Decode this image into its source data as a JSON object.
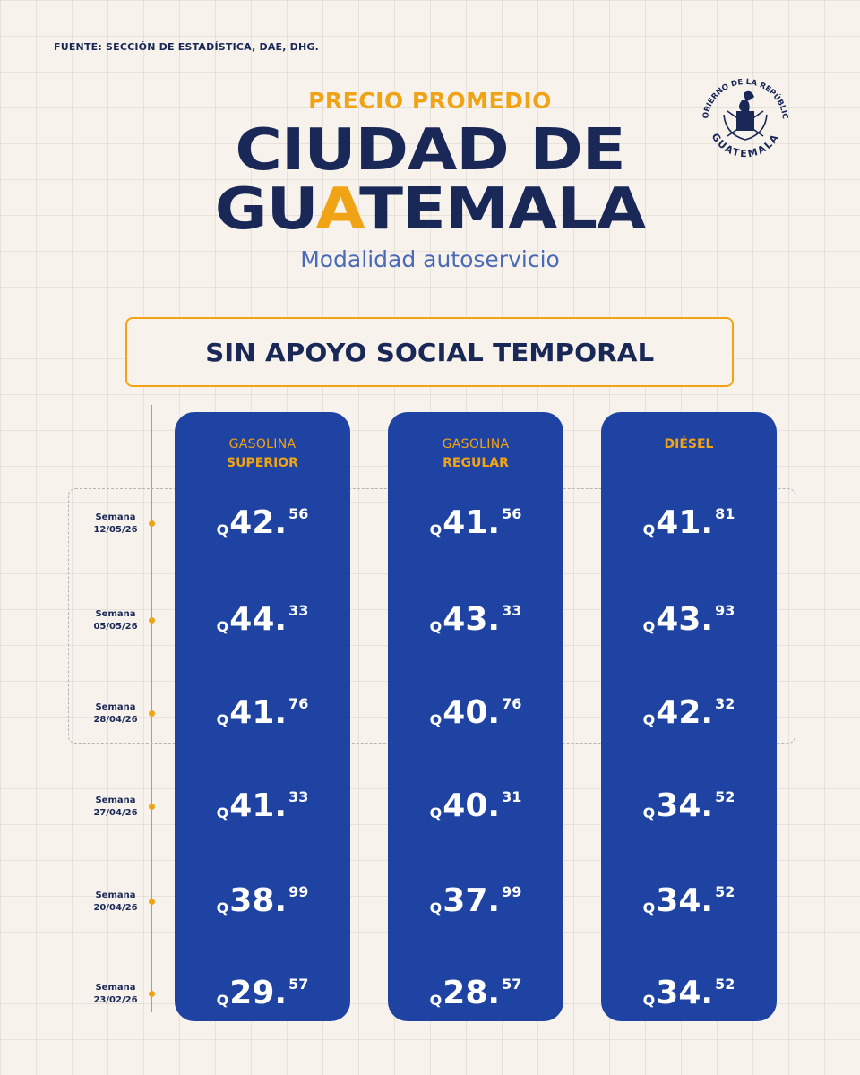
{
  "source": "FUENTE: SECCIÓN DE ESTADÍSTICA, DAE, DHG.",
  "seal": {
    "arc_top": "GOBIERNO DE LA REPÚBLICA",
    "arc_bottom": "GUATEMALA"
  },
  "title": {
    "kicker": "PRECIO PROMEDIO",
    "line1": "CIUDAD DE",
    "line2_pre": "GU",
    "line2_accent": "A",
    "line2_post": "TEMALA",
    "mode": "Modalidad autoservicio"
  },
  "banner": "SIN APOYO SOCIAL TEMPORAL",
  "currency": "Q",
  "weeks": [
    {
      "label": "Semana",
      "date": "12/05/26"
    },
    {
      "label": "Semana",
      "date": "05/05/26"
    },
    {
      "label": "Semana",
      "date": "28/04/26"
    },
    {
      "label": "Semana",
      "date": "27/04/26"
    },
    {
      "label": "Semana",
      "date": "20/04/26"
    },
    {
      "label": "Semana",
      "date": "23/02/26"
    }
  ],
  "columns": [
    {
      "head1": "GASOLINA",
      "head2": "SUPERIOR",
      "prices": [
        {
          "whole": "42.",
          "cents": "56"
        },
        {
          "whole": "44.",
          "cents": "33"
        },
        {
          "whole": "41.",
          "cents": "76"
        },
        {
          "whole": "41.",
          "cents": "33"
        },
        {
          "whole": "38.",
          "cents": "99"
        },
        {
          "whole": "29.",
          "cents": "57"
        }
      ]
    },
    {
      "head1": "GASOLINA",
      "head2": "REGULAR",
      "prices": [
        {
          "whole": "41.",
          "cents": "56"
        },
        {
          "whole": "43.",
          "cents": "33"
        },
        {
          "whole": "40.",
          "cents": "76"
        },
        {
          "whole": "40.",
          "cents": "31"
        },
        {
          "whole": "37.",
          "cents": "99"
        },
        {
          "whole": "28.",
          "cents": "57"
        }
      ]
    },
    {
      "head1": "",
      "head2": "DIÉSEL",
      "prices": [
        {
          "whole": "41.",
          "cents": "81"
        },
        {
          "whole": "43.",
          "cents": "93"
        },
        {
          "whole": "42.",
          "cents": "32"
        },
        {
          "whole": "34.",
          "cents": "52"
        },
        {
          "whole": "34.",
          "cents": "52"
        },
        {
          "whole": "34.",
          "cents": "52"
        }
      ]
    }
  ],
  "colors": {
    "navy": "#1a2857",
    "orange": "#f0a315",
    "column_blue": "#1f43a2",
    "mode_blue": "#4a6ab8"
  }
}
